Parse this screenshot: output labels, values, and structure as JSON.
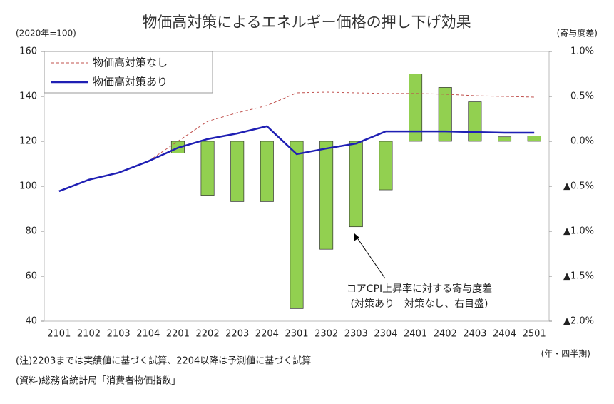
{
  "chart_data": {
    "type": "bar_line",
    "title": "物価高対策によるエネルギー価格の押し下げ効果",
    "y_label": "(2020年=100)",
    "y2_label": "(寄与度差)",
    "x_label": "(年・四半期)",
    "categories": [
      "2101",
      "2102",
      "2103",
      "2104",
      "2201",
      "2202",
      "2203",
      "2204",
      "2301",
      "2302",
      "2303",
      "2304",
      "2401",
      "2402",
      "2403",
      "2404",
      "2501"
    ],
    "ylim": [
      40,
      160
    ],
    "yticks": [
      40,
      60,
      80,
      100,
      120,
      140,
      160
    ],
    "y2lim": [
      -2.0,
      1.0
    ],
    "y2ticks": [
      {
        "value": -2.0,
        "label": "▲2.0%"
      },
      {
        "value": -1.5,
        "label": "▲1.5%"
      },
      {
        "value": -1.0,
        "label": "▲1.0%"
      },
      {
        "value": -0.5,
        "label": "▲0.5%"
      },
      {
        "value": 0.0,
        "label": "0.0%"
      },
      {
        "value": 0.5,
        "label": "0.5%"
      },
      {
        "value": 1.0,
        "label": "1.0%"
      }
    ],
    "series": [
      {
        "name": "物価高対策なし",
        "kind": "line",
        "style": "dashed",
        "color": "#c0504d",
        "axis": "y",
        "values": [
          97.8,
          102.9,
          106.0,
          111.1,
          120.0,
          128.9,
          132.7,
          135.9,
          141.6,
          141.9,
          141.6,
          141.3,
          141.3,
          141.0,
          140.3,
          140.0,
          139.7
        ]
      },
      {
        "name": "物価高対策あり",
        "kind": "line",
        "style": "solid",
        "color": "#1f1fb4",
        "axis": "y",
        "values": [
          97.8,
          102.9,
          106.0,
          111.1,
          117.1,
          121.0,
          123.5,
          126.7,
          114.3,
          116.8,
          119.0,
          124.4,
          124.4,
          124.4,
          124.1,
          123.8,
          123.8
        ]
      },
      {
        "kind": "bar",
        "color": "#92d050",
        "axis": "y2",
        "values": [
          null,
          null,
          null,
          null,
          -0.13,
          -0.6,
          -0.67,
          -0.67,
          -1.86,
          -1.2,
          -0.95,
          -0.54,
          0.75,
          0.6,
          0.44,
          0.05,
          0.06
        ]
      }
    ],
    "annotation": [
      "コアCPI上昇率に対する寄与度差",
      "(対策あり－対策なし、右目盛)"
    ],
    "notes": [
      "(注)2203までは実績値に基づく試算、2204以降は予測値に基づく試算",
      "(資料)総務省統計局「消費者物価指数」"
    ]
  }
}
